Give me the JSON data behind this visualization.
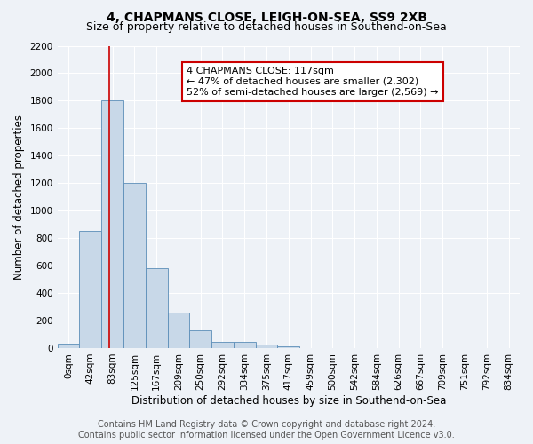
{
  "title": "4, CHAPMANS CLOSE, LEIGH-ON-SEA, SS9 2XB",
  "subtitle": "Size of property relative to detached houses in Southend-on-Sea",
  "xlabel": "Distribution of detached houses by size in Southend-on-Sea",
  "ylabel": "Number of detached properties",
  "bin_labels": [
    "0sqm",
    "42sqm",
    "83sqm",
    "125sqm",
    "167sqm",
    "209sqm",
    "250sqm",
    "292sqm",
    "334sqm",
    "375sqm",
    "417sqm",
    "459sqm",
    "500sqm",
    "542sqm",
    "584sqm",
    "626sqm",
    "667sqm",
    "709sqm",
    "751sqm",
    "792sqm",
    "834sqm"
  ],
  "bar_heights": [
    30,
    850,
    1800,
    1200,
    580,
    255,
    130,
    45,
    45,
    25,
    15,
    0,
    0,
    0,
    0,
    0,
    0,
    0,
    0,
    0,
    0
  ],
  "bar_color": "#c8d8e8",
  "bar_edge_color": "#5b8db8",
  "ylim": [
    0,
    2200
  ],
  "yticks": [
    0,
    200,
    400,
    600,
    800,
    1000,
    1200,
    1400,
    1600,
    1800,
    2000,
    2200
  ],
  "red_line_bin_index": 2,
  "annotation_text": "4 CHAPMANS CLOSE: 117sqm\n← 47% of detached houses are smaller (2,302)\n52% of semi-detached houses are larger (2,569) →",
  "annotation_box_facecolor": "#ffffff",
  "annotation_box_edgecolor": "#cc0000",
  "red_line_color": "#cc0000",
  "footer_line1": "Contains HM Land Registry data © Crown copyright and database right 2024.",
  "footer_line2": "Contains public sector information licensed under the Open Government Licence v3.0.",
  "background_color": "#eef2f7",
  "grid_color": "#ffffff",
  "title_fontsize": 10,
  "subtitle_fontsize": 9,
  "axis_label_fontsize": 8.5,
  "tick_fontsize": 7.5,
  "annotation_fontsize": 8,
  "footer_fontsize": 7
}
